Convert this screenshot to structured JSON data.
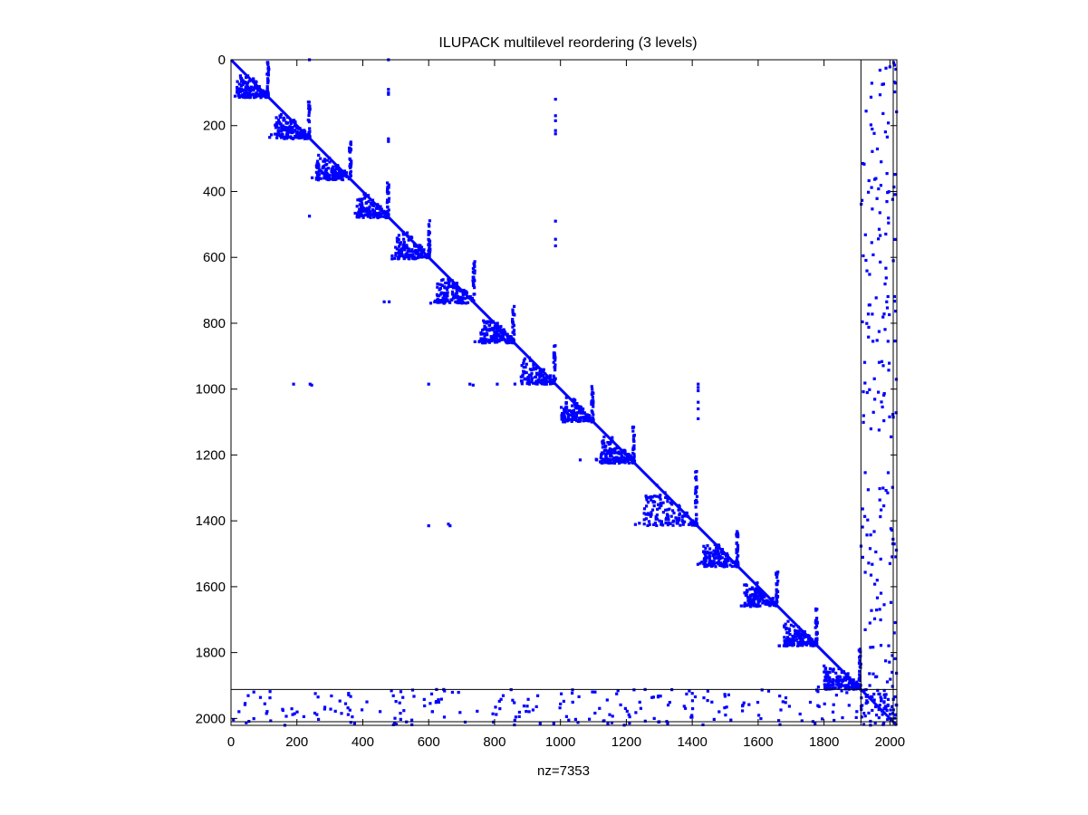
{
  "chart_data": {
    "type": "scatter",
    "subtype": "sparsity-pattern",
    "title": "ILUPACK multilevel reordering (3 levels)",
    "xlabel": "nz=7353",
    "ylabel": "",
    "matrix_size": 2021,
    "nnz": 7353,
    "xlim": [
      0,
      2021
    ],
    "ylim": [
      0,
      2021
    ],
    "y_axis_reversed": true,
    "x_ticks": [
      0,
      200,
      400,
      600,
      800,
      1000,
      1200,
      1400,
      1600,
      1800,
      2000
    ],
    "y_ticks": [
      0,
      200,
      400,
      600,
      800,
      1000,
      1200,
      1400,
      1600,
      1800,
      2000
    ],
    "x_tick_labels": [
      "0",
      "200",
      "400",
      "600",
      "800",
      "1000",
      "1200",
      "1400",
      "1600",
      "1800",
      "2000"
    ],
    "y_tick_labels": [
      "0",
      "200",
      "400",
      "600",
      "800",
      "1000",
      "1200",
      "1400",
      "1600",
      "1800",
      "2000"
    ],
    "marker_color": "#0000ff",
    "grid": false,
    "level_separators": [
      1912,
      2010
    ],
    "diagonal_blocks": [
      {
        "start": 0,
        "end": 115
      },
      {
        "start": 115,
        "end": 240
      },
      {
        "start": 240,
        "end": 365
      },
      {
        "start": 365,
        "end": 480
      },
      {
        "start": 480,
        "end": 605
      },
      {
        "start": 605,
        "end": 740
      },
      {
        "start": 740,
        "end": 860
      },
      {
        "start": 860,
        "end": 985
      },
      {
        "start": 985,
        "end": 1100
      },
      {
        "start": 1100,
        "end": 1225
      },
      {
        "start": 1225,
        "end": 1415
      },
      {
        "start": 1415,
        "end": 1540
      },
      {
        "start": 1540,
        "end": 1660
      },
      {
        "start": 1660,
        "end": 1780
      },
      {
        "start": 1780,
        "end": 1912
      }
    ],
    "block_coupling_points": [
      {
        "x": 985,
        "y": 120
      },
      {
        "x": 985,
        "y": 170
      },
      {
        "x": 985,
        "y": 185
      },
      {
        "x": 985,
        "y": 215
      },
      {
        "x": 985,
        "y": 225
      },
      {
        "x": 985,
        "y": 490
      },
      {
        "x": 985,
        "y": 545
      },
      {
        "x": 985,
        "y": 565
      },
      {
        "x": 478,
        "y": 0
      },
      {
        "x": 478,
        "y": 90
      },
      {
        "x": 478,
        "y": 100
      },
      {
        "x": 478,
        "y": 105
      },
      {
        "x": 478,
        "y": 240
      },
      {
        "x": 478,
        "y": 248
      },
      {
        "x": 238,
        "y": 0
      },
      {
        "x": 238,
        "y": 475
      },
      {
        "x": 190,
        "y": 985
      },
      {
        "x": 240,
        "y": 985
      },
      {
        "x": 245,
        "y": 988
      },
      {
        "x": 600,
        "y": 985
      },
      {
        "x": 725,
        "y": 985
      },
      {
        "x": 735,
        "y": 988
      },
      {
        "x": 808,
        "y": 985
      },
      {
        "x": 465,
        "y": 735
      },
      {
        "x": 480,
        "y": 735
      },
      {
        "x": 600,
        "y": 1415
      },
      {
        "x": 660,
        "y": 1410
      },
      {
        "x": 665,
        "y": 1415
      },
      {
        "x": 1060,
        "y": 1215
      },
      {
        "x": 1110,
        "y": 1215
      },
      {
        "x": 1418,
        "y": 985
      },
      {
        "x": 1418,
        "y": 995
      },
      {
        "x": 1418,
        "y": 1005
      },
      {
        "x": 1418,
        "y": 1040
      },
      {
        "x": 1418,
        "y": 1060
      },
      {
        "x": 1418,
        "y": 1090
      }
    ]
  }
}
